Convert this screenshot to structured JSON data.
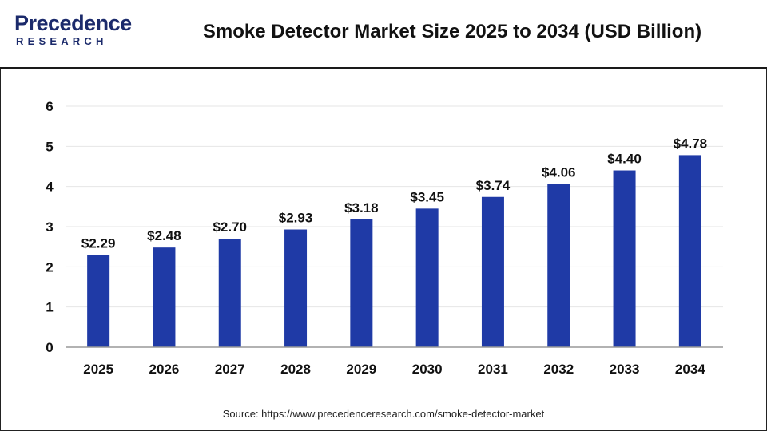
{
  "header": {
    "logo_word": "Precedence",
    "logo_sub": "RESEARCH",
    "title": "Smoke Detector Market Size 2025 to 2034 (USD Billion)"
  },
  "footer": {
    "source": "Source: https://www.precedenceresearch.com/smoke-detector-market"
  },
  "colors": {
    "bar": "#1f3aa6",
    "grid": "#e6e6e6",
    "axis": "#999999",
    "brand": "#1b2a6b"
  },
  "chart_data": {
    "type": "bar",
    "title": "Smoke Detector Market Size 2025 to 2034 (USD Billion)",
    "xlabel": "",
    "ylabel": "",
    "categories": [
      "2025",
      "2026",
      "2027",
      "2028",
      "2029",
      "2030",
      "2031",
      "2032",
      "2033",
      "2034"
    ],
    "values": [
      2.29,
      2.48,
      2.7,
      2.93,
      3.18,
      3.45,
      3.74,
      4.06,
      4.4,
      4.78
    ],
    "data_labels": [
      "$2.29",
      "$2.48",
      "$2.70",
      "$2.93",
      "$3.18",
      "$3.45",
      "$3.74",
      "$4.06",
      "$4.40",
      "$4.78"
    ],
    "yticks": [
      "0",
      "1",
      "2",
      "3",
      "4",
      "5",
      "6"
    ],
    "ylim": [
      0,
      6
    ],
    "grid": true,
    "legend": "none"
  }
}
